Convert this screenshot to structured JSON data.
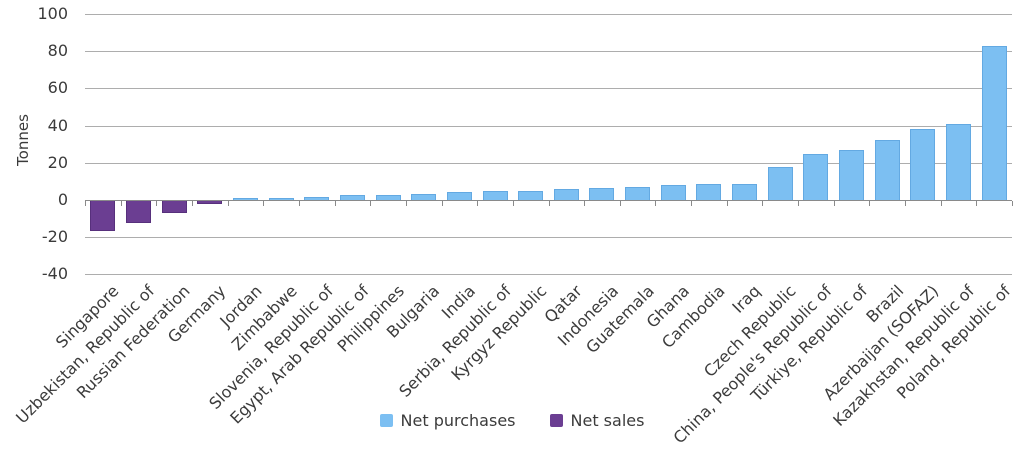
{
  "chart_data": {
    "type": "bar",
    "title": "",
    "xlabel": "",
    "ylabel": "Tonnes",
    "ylim": [
      -40,
      100
    ],
    "yticks": [
      100,
      80,
      60,
      40,
      20,
      0,
      -20,
      -40
    ],
    "grid": true,
    "legend_position": "bottom",
    "categories": [
      "Singapore",
      "Uzbekistan, Republic of",
      "Russian Federation",
      "Germany",
      "Jordan",
      "Zimbabwe",
      "Slovenia, Republic of",
      "Egypt, Arab Republic of",
      "Philippines",
      "Bulgaria",
      "India",
      "Serbia, Republic of",
      "Kyrgyz Republic",
      "Qatar",
      "Indonesia",
      "Guatemala",
      "Ghana",
      "Cambodia",
      "Iraq",
      "Czech Republic",
      "China, People's Republic of",
      "Türkiye, Republic of",
      "Brazil",
      "Azerbaijan (SOFAZ)",
      "Kazakhstan, Republic of",
      "Poland, Republic of"
    ],
    "values": [
      -16,
      -12,
      -6.5,
      -1.5,
      1,
      1.3,
      1.8,
      2.5,
      2.7,
      3,
      4.2,
      4.6,
      5,
      5.7,
      6.2,
      6.8,
      8,
      8.4,
      8.8,
      18,
      25,
      27,
      32,
      38,
      41,
      83
    ],
    "series": [
      {
        "name": "Net purchases",
        "rule": "values >= 0",
        "color": "#7cbff2"
      },
      {
        "name": "Net sales",
        "rule": "values < 0",
        "color": "#6b3e92"
      }
    ],
    "legend": [
      {
        "label": "Net purchases",
        "color": "#7cbff2"
      },
      {
        "label": "Net sales",
        "color": "#6b3e92"
      }
    ]
  },
  "colors": {
    "net_purchases": "#7cbff2",
    "net_sales": "#6b3e92",
    "gridline": "#adadad",
    "axis_line": "#8a8a8a",
    "text": "#3b3b3b"
  }
}
